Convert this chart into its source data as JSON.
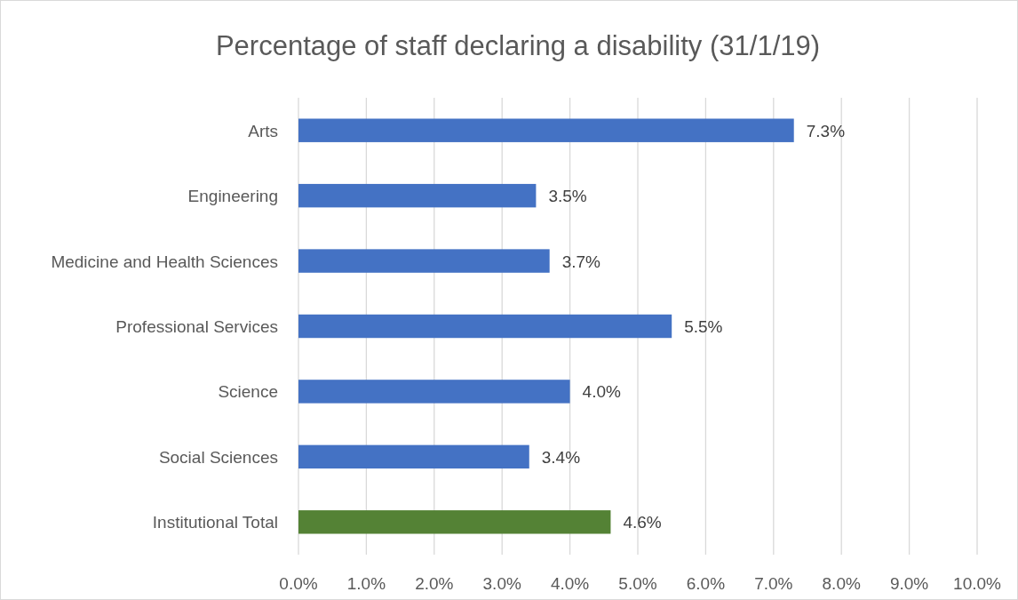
{
  "chart_data": {
    "type": "bar",
    "orientation": "horizontal",
    "title": "Percentage of staff declaring a disability (31/1/19)",
    "categories": [
      "Arts",
      "Engineering",
      "Medicine and Health Sciences",
      "Professional Services",
      "Science",
      "Social Sciences",
      "Institutional Total"
    ],
    "values": [
      7.3,
      3.5,
      3.7,
      5.5,
      4.0,
      3.4,
      4.6
    ],
    "colors": [
      "#4472c4",
      "#4472c4",
      "#4472c4",
      "#4472c4",
      "#4472c4",
      "#4472c4",
      "#548235"
    ],
    "value_labels": [
      "7.3%",
      "3.5%",
      "3.7%",
      "5.5%",
      "4.0%",
      "3.4%",
      "4.6%"
    ],
    "xlim": [
      0,
      10
    ],
    "xticks": [
      {
        "value": 0,
        "label": "0.0%"
      },
      {
        "value": 1,
        "label": "1.0%"
      },
      {
        "value": 2,
        "label": "2.0%"
      },
      {
        "value": 3,
        "label": "3.0%"
      },
      {
        "value": 4,
        "label": "4.0%"
      },
      {
        "value": 5,
        "label": "5.0%"
      },
      {
        "value": 6,
        "label": "6.0%"
      },
      {
        "value": 7,
        "label": "7.0%"
      },
      {
        "value": 8,
        "label": "8.0%"
      },
      {
        "value": 9,
        "label": "9.0%"
      },
      {
        "value": 10,
        "label": "10.0%"
      }
    ],
    "grid": "x"
  }
}
